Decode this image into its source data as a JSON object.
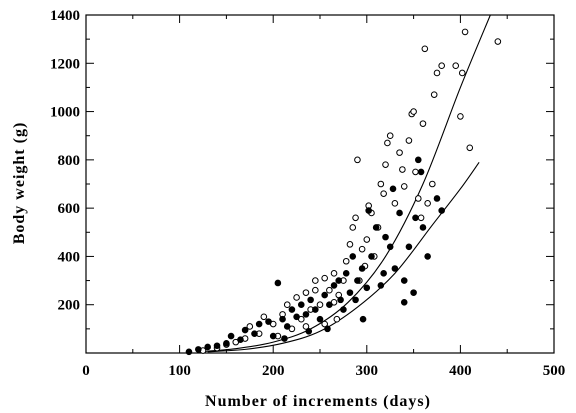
{
  "chart_data": {
    "type": "scatter",
    "title": "",
    "xlabel": "Number of increments (days)",
    "ylabel": "Body weight (g)",
    "xlim": [
      0,
      500
    ],
    "ylim": [
      0,
      1400
    ],
    "x_ticks": [
      0,
      100,
      200,
      300,
      400,
      500
    ],
    "y_ticks": [
      200,
      400,
      600,
      800,
      1000,
      1200,
      1400
    ],
    "grid": false,
    "marker_styles": [
      "open-circle",
      "filled-circle"
    ],
    "series": [
      {
        "marker": "open-circle",
        "points": [
          [
            125,
            10
          ],
          [
            140,
            20
          ],
          [
            150,
            35
          ],
          [
            160,
            45
          ],
          [
            170,
            60
          ],
          [
            175,
            110
          ],
          [
            185,
            80
          ],
          [
            190,
            150
          ],
          [
            200,
            120
          ],
          [
            205,
            70
          ],
          [
            210,
            160
          ],
          [
            215,
            200
          ],
          [
            220,
            100
          ],
          [
            225,
            230
          ],
          [
            230,
            140
          ],
          [
            235,
            250
          ],
          [
            240,
            180
          ],
          [
            245,
            300
          ],
          [
            250,
            200
          ],
          [
            255,
            120
          ],
          [
            260,
            260
          ],
          [
            265,
            330
          ],
          [
            270,
            240
          ],
          [
            275,
            300
          ],
          [
            278,
            380
          ],
          [
            282,
            450
          ],
          [
            285,
            520
          ],
          [
            288,
            560
          ],
          [
            290,
            800
          ],
          [
            295,
            430
          ],
          [
            298,
            360
          ],
          [
            300,
            470
          ],
          [
            302,
            610
          ],
          [
            305,
            580
          ],
          [
            308,
            400
          ],
          [
            312,
            520
          ],
          [
            315,
            700
          ],
          [
            318,
            660
          ],
          [
            320,
            780
          ],
          [
            322,
            870
          ],
          [
            325,
            900
          ],
          [
            330,
            620
          ],
          [
            335,
            830
          ],
          [
            338,
            760
          ],
          [
            340,
            690
          ],
          [
            345,
            880
          ],
          [
            348,
            990
          ],
          [
            350,
            1000
          ],
          [
            352,
            750
          ],
          [
            355,
            640
          ],
          [
            358,
            560
          ],
          [
            360,
            950
          ],
          [
            362,
            1260
          ],
          [
            365,
            620
          ],
          [
            370,
            700
          ],
          [
            372,
            1070
          ],
          [
            375,
            1160
          ],
          [
            380,
            1190
          ],
          [
            395,
            1190
          ],
          [
            400,
            980
          ],
          [
            402,
            1160
          ],
          [
            405,
            1330
          ],
          [
            410,
            850
          ],
          [
            440,
            1290
          ],
          [
            235,
            110
          ],
          [
            245,
            260
          ],
          [
            255,
            310
          ],
          [
            265,
            210
          ],
          [
            268,
            140
          ],
          [
            292,
            300
          ]
        ]
      },
      {
        "marker": "filled-circle",
        "points": [
          [
            110,
            5
          ],
          [
            120,
            15
          ],
          [
            130,
            25
          ],
          [
            140,
            30
          ],
          [
            150,
            40
          ],
          [
            155,
            70
          ],
          [
            165,
            55
          ],
          [
            170,
            95
          ],
          [
            180,
            80
          ],
          [
            185,
            120
          ],
          [
            195,
            130
          ],
          [
            200,
            70
          ],
          [
            205,
            290
          ],
          [
            210,
            140
          ],
          [
            215,
            110
          ],
          [
            220,
            180
          ],
          [
            225,
            150
          ],
          [
            230,
            200
          ],
          [
            235,
            160
          ],
          [
            240,
            220
          ],
          [
            245,
            180
          ],
          [
            250,
            140
          ],
          [
            255,
            240
          ],
          [
            260,
            200
          ],
          [
            265,
            280
          ],
          [
            270,
            300
          ],
          [
            275,
            180
          ],
          [
            278,
            330
          ],
          [
            282,
            250
          ],
          [
            285,
            400
          ],
          [
            288,
            220
          ],
          [
            290,
            300
          ],
          [
            295,
            350
          ],
          [
            300,
            270
          ],
          [
            302,
            590
          ],
          [
            305,
            400
          ],
          [
            310,
            520
          ],
          [
            315,
            280
          ],
          [
            320,
            480
          ],
          [
            325,
            440
          ],
          [
            328,
            680
          ],
          [
            330,
            350
          ],
          [
            335,
            580
          ],
          [
            340,
            300
          ],
          [
            345,
            440
          ],
          [
            350,
            250
          ],
          [
            352,
            560
          ],
          [
            355,
            800
          ],
          [
            358,
            750
          ],
          [
            360,
            520
          ],
          [
            365,
            400
          ],
          [
            375,
            640
          ],
          [
            380,
            590
          ],
          [
            340,
            210
          ],
          [
            318,
            330
          ],
          [
            296,
            140
          ],
          [
            272,
            220
          ],
          [
            258,
            100
          ],
          [
            238,
            90
          ],
          [
            212,
            60
          ]
        ]
      }
    ],
    "fit_curves": [
      {
        "style": "solid-line",
        "x": [
          120,
          160,
          200,
          240,
          280,
          320,
          360,
          400,
          432
        ],
        "y": [
          5,
          18,
          45,
          100,
          210,
          400,
          700,
          1100,
          1400
        ]
      },
      {
        "style": "solid-line",
        "x": [
          130,
          170,
          210,
          250,
          290,
          330,
          370,
          400,
          420
        ],
        "y": [
          5,
          15,
          40,
          90,
          190,
          330,
          530,
          680,
          790
        ]
      }
    ]
  }
}
